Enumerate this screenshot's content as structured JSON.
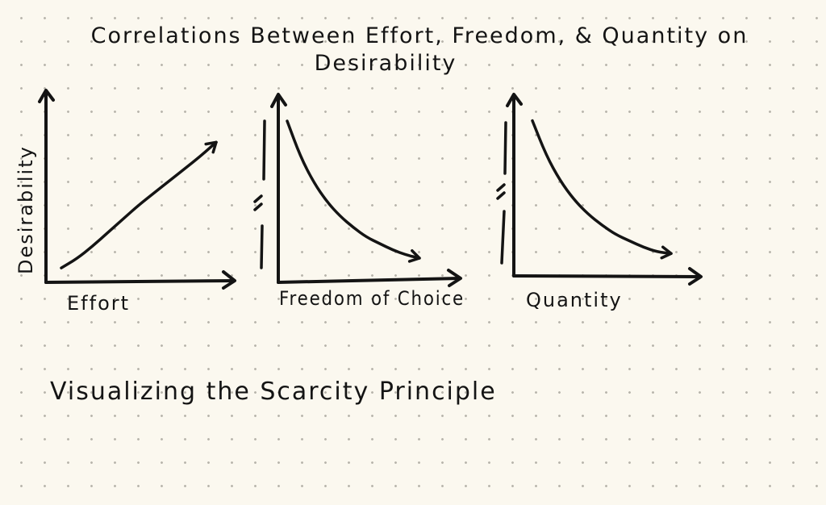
{
  "title": {
    "line1": "Correlations Between Effort, Freedom, & Quantity on",
    "line2": "Desirability"
  },
  "caption": "Visualizing the Scarcity Principle",
  "chart_data": [
    {
      "type": "line",
      "xlabel": "Effort",
      "ylabel": "Desirability",
      "trend": "increasing",
      "series": [
        {
          "x": [
            0,
            1,
            2,
            3,
            4,
            5,
            6,
            7,
            8,
            9,
            10
          ],
          "values": [
            0.1,
            0.7,
            1.5,
            2.4,
            3.3,
            4.2,
            5.0,
            5.8,
            6.6,
            7.4,
            8.3
          ]
        }
      ]
    },
    {
      "type": "line",
      "xlabel": "Freedom of Choice",
      "ylabel": "",
      "trend": "decreasing",
      "series": [
        {
          "x": [
            0,
            1,
            2,
            3,
            4,
            5,
            6,
            7,
            8,
            9,
            10
          ],
          "values": [
            9.0,
            6.8,
            5.2,
            4.0,
            3.1,
            2.4,
            1.8,
            1.4,
            1.0,
            0.7,
            0.5
          ]
        }
      ]
    },
    {
      "type": "line",
      "xlabel": "Quantity",
      "ylabel": "",
      "trend": "decreasing",
      "series": [
        {
          "x": [
            0,
            1,
            2,
            3,
            4,
            5,
            6,
            7,
            8,
            9,
            10
          ],
          "values": [
            9.0,
            6.8,
            5.2,
            4.0,
            3.1,
            2.4,
            1.8,
            1.4,
            1.0,
            0.7,
            0.6
          ]
        }
      ]
    }
  ]
}
